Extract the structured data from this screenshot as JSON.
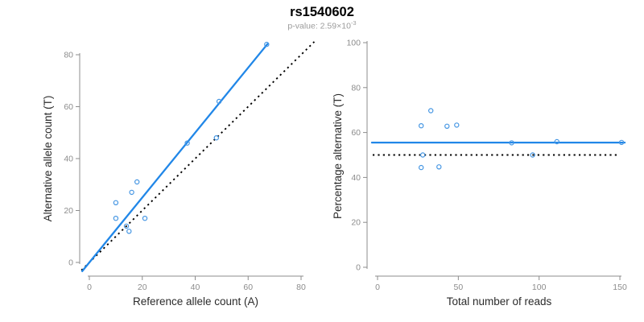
{
  "header": {
    "title": "rs1540602",
    "pvalue_prefix": "p-value: 2.59×10",
    "pvalue_exponent": "-3"
  },
  "colors": {
    "line_blue": "#2187e8",
    "point_blue": "#4596e3",
    "reference_black": "#000000",
    "axis_gray": "#8c8c8c",
    "tick_label_gray": "#8c8c8c",
    "axis_title_dark": "#2b2b2b"
  },
  "chart_data": [
    {
      "type": "scatter",
      "xlabel": "Reference allele count (A)",
      "ylabel": "Alternative allele count (T)",
      "xlim": [
        0,
        80
      ],
      "ylim": [
        0,
        80
      ],
      "xticks": [
        0,
        20,
        40,
        60,
        80
      ],
      "yticks": [
        0,
        20,
        40,
        60,
        80
      ],
      "grid": false,
      "points": [
        [
          10,
          17
        ],
        [
          10,
          23
        ],
        [
          14,
          14
        ],
        [
          15,
          12
        ],
        [
          16,
          27
        ],
        [
          18,
          31
        ],
        [
          21,
          17
        ],
        [
          37,
          46
        ],
        [
          48,
          48
        ],
        [
          49,
          62
        ],
        [
          67,
          84
        ]
      ],
      "fit_line": {
        "slope": 1.25,
        "intercept": 0,
        "style": "solid"
      },
      "identity_line": {
        "slope": 1,
        "intercept": 0,
        "style": "dotted"
      }
    },
    {
      "type": "scatter",
      "xlabel": "Total number of reads",
      "ylabel": "Percentage alternative (T)",
      "xlim": [
        0,
        150
      ],
      "ylim": [
        0,
        100
      ],
      "xticks": [
        0,
        50,
        100,
        150
      ],
      "yticks": [
        0,
        20,
        40,
        60,
        80,
        100
      ],
      "grid": false,
      "points": [
        [
          27,
          63
        ],
        [
          33,
          69.7
        ],
        [
          28,
          50
        ],
        [
          27,
          44.4
        ],
        [
          43,
          62.8
        ],
        [
          49,
          63.3
        ],
        [
          38,
          44.7
        ],
        [
          83,
          55.4
        ],
        [
          96,
          50
        ],
        [
          111,
          55.9
        ],
        [
          151,
          55.6
        ]
      ],
      "mean_line": {
        "y": 55.5,
        "style": "solid"
      },
      "reference_line": {
        "y": 50,
        "style": "dotted"
      }
    }
  ]
}
